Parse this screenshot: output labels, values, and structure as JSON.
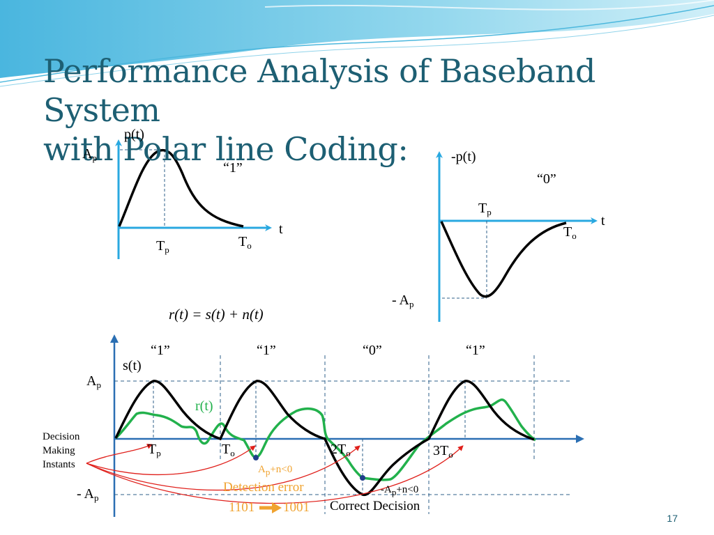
{
  "slide": {
    "title_line1": "Performance Analysis of Baseband System",
    "title_line2": "with Polar line Coding:",
    "page_number": "17"
  },
  "pulse_one": {
    "ylabel": "p(t)",
    "amp_label": "A",
    "amp_sub": "p",
    "bit_label": "“1”",
    "xlabel": "t",
    "tp_label": "T",
    "tp_sub": "p",
    "to_label": "T",
    "to_sub": "o"
  },
  "pulse_zero": {
    "ylabel": "-p(t)",
    "amp_label": "- A",
    "amp_sub": "p",
    "bit_label": "“0”",
    "xlabel": "t",
    "tp_label": "T",
    "tp_sub": "p",
    "to_label": "T",
    "to_sub": "o"
  },
  "equation": "r(t) = s(t) + n(t)",
  "waveform": {
    "bits": [
      "“1”",
      "“1”",
      "“0”",
      "“1”"
    ],
    "signal_label": "s(t)",
    "received_label": "r(t)",
    "amp_pos_label": "A",
    "amp_pos_sub": "p",
    "amp_neg_label": "- A",
    "amp_neg_sub": "p",
    "decision_line1": "Decision",
    "decision_line2": "Making",
    "decision_line3": "Instants",
    "tick_tp": "T",
    "tick_tp_sub": "p",
    "tick_to": "T",
    "tick_to_sub": "o",
    "tick_2to": "2T",
    "tick_2to_sub": "o",
    "tick_3to": "3T",
    "tick_3to_sub": "o",
    "cond_pos_a": "A",
    "cond_pos_sub": "p",
    "cond_pos_b": "+n<0",
    "cond_neg_a": "-A",
    "cond_neg_sub": "p",
    "cond_neg_b": "+n<0",
    "error_label": "Detection error",
    "sequence_from": "1101",
    "sequence_to": "1001",
    "correct_label": "Correct Decision"
  },
  "colors": {
    "title": "#1d5f73",
    "axis": "#29a8e0",
    "signal": "#000000",
    "received": "#22b14c",
    "error_text": "#f0a330",
    "decision_arrows": "#e0201b",
    "guide_lines": "#2e5f8a"
  }
}
